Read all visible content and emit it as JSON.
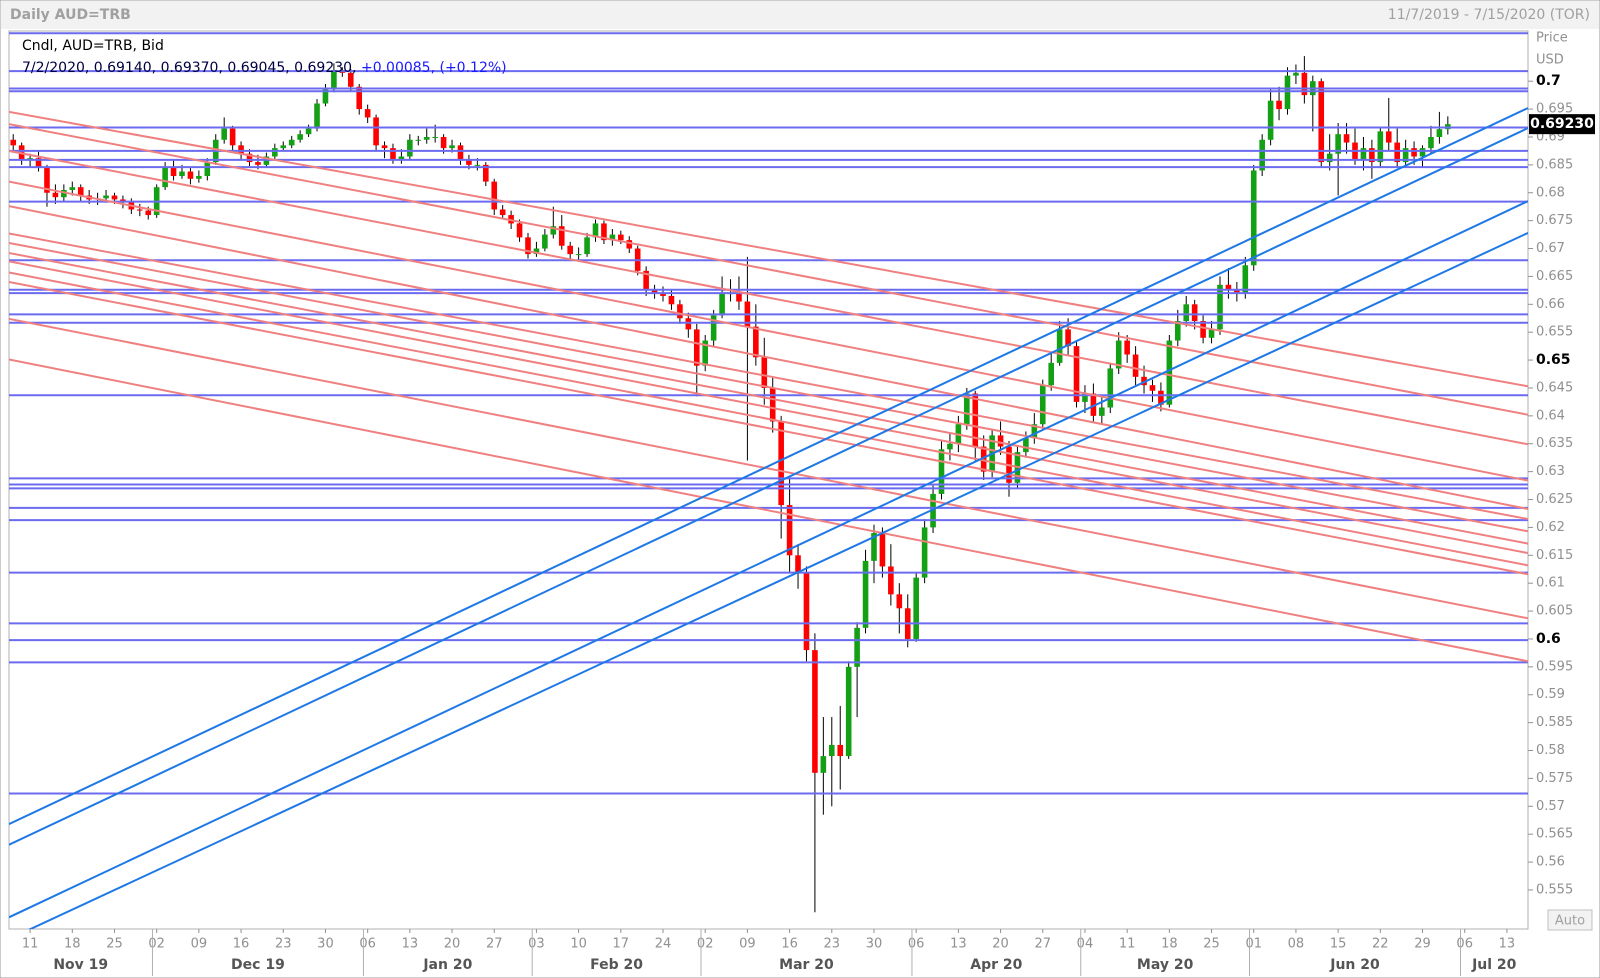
{
  "header": {
    "title": "Daily AUD=TRB",
    "range": "11/7/2019 - 7/15/2020 (TOR)"
  },
  "chart_data": {
    "type": "candlestick",
    "legend_title": "Cndl, AUD=TRB, Bid",
    "legend_values": "7/2/2020, 0.69140, 0.69370, 0.69045, 0.69230,",
    "legend_change": "+0.00085, (+0.12%)",
    "y_axis_title": "Price",
    "y_axis_unit": "USD",
    "scale_mode": "Auto",
    "up_color": "#14a014",
    "down_color": "#ff0000",
    "wick_color": "#000000",
    "ylim": [
      0.548,
      0.709
    ],
    "yticks": [
      0.555,
      0.56,
      0.565,
      0.57,
      0.575,
      0.58,
      0.585,
      0.59,
      0.595,
      0.6,
      0.605,
      0.61,
      0.615,
      0.62,
      0.625,
      0.63,
      0.635,
      0.64,
      0.645,
      0.65,
      0.655,
      0.66,
      0.665,
      0.67,
      0.675,
      0.68,
      0.685,
      0.69,
      0.695,
      0.7
    ],
    "last_price": {
      "value": 0.6923,
      "label": "0.69230"
    },
    "categories": [
      null,
      null,
      "11",
      null,
      null,
      null,
      null,
      "18",
      null,
      null,
      null,
      null,
      "25",
      null,
      null,
      null,
      null,
      "02",
      null,
      null,
      null,
      null,
      "09",
      null,
      null,
      null,
      null,
      "16",
      null,
      null,
      null,
      null,
      "23",
      null,
      null,
      null,
      null,
      "30",
      null,
      null,
      null,
      null,
      "06",
      null,
      null,
      null,
      null,
      "13",
      null,
      null,
      null,
      null,
      "20",
      null,
      null,
      null,
      null,
      "27",
      null,
      null,
      null,
      null,
      "03",
      null,
      null,
      null,
      null,
      "10",
      null,
      null,
      null,
      null,
      "17",
      null,
      null,
      null,
      null,
      "24",
      null,
      null,
      null,
      null,
      "02",
      null,
      null,
      null,
      null,
      "09",
      null,
      null,
      null,
      null,
      "16",
      null,
      null,
      null,
      null,
      "23",
      null,
      null,
      null,
      null,
      "30",
      null,
      null,
      null,
      null,
      "06",
      null,
      null,
      null,
      null,
      "13",
      null,
      null,
      null,
      null,
      "20",
      null,
      null,
      null,
      null,
      "27",
      null,
      null,
      null,
      null,
      "04",
      null,
      null,
      null,
      null,
      "11",
      null,
      null,
      null,
      null,
      "18",
      null,
      null,
      null,
      null,
      "25",
      null,
      null,
      null,
      null,
      "01",
      null,
      null,
      null,
      null,
      "08",
      null,
      null,
      null,
      null,
      "15",
      null,
      null,
      null,
      null,
      "22",
      null,
      null,
      null,
      null,
      "29",
      null,
      null,
      null,
      null,
      "06",
      null,
      null,
      null,
      null,
      "13",
      null,
      null
    ],
    "x_groups": [
      "Nov 19",
      "Dec 19",
      "Jan 20",
      "Feb 20",
      "Mar 20",
      "Apr 20",
      "May 20",
      "Jun 20",
      "Jul 20"
    ],
    "open": [
      0.6895,
      0.6885,
      0.686,
      0.6862,
      0.6845,
      0.68,
      0.6792,
      0.6805,
      0.681,
      0.6795,
      0.6788,
      0.679,
      0.6795,
      0.6788,
      0.6785,
      0.677,
      0.6768,
      0.676,
      0.681,
      0.6845,
      0.683,
      0.6838,
      0.6825,
      0.683,
      0.6855,
      0.6895,
      0.6915,
      0.6885,
      0.687,
      0.6855,
      0.685,
      0.6865,
      0.688,
      0.6885,
      0.6895,
      0.6905,
      0.6915,
      0.696,
      0.6985,
      0.702,
      0.7015,
      0.699,
      0.695,
      0.6935,
      0.6885,
      0.688,
      0.686,
      0.6865,
      0.6895,
      0.6895,
      0.69,
      0.69,
      0.688,
      0.6885,
      0.686,
      0.685,
      0.685,
      0.682,
      0.677,
      0.676,
      0.6745,
      0.672,
      0.669,
      0.67,
      0.6725,
      0.674,
      0.6705,
      0.669,
      0.669,
      0.672,
      0.6745,
      0.6715,
      0.6725,
      0.6715,
      0.67,
      0.666,
      0.6625,
      0.662,
      0.6615,
      0.66,
      0.6575,
      0.6555,
      0.649,
      0.6535,
      0.658,
      0.662,
      0.662,
      0.6605,
      0.656,
      0.6505,
      0.645,
      0.639,
      0.624,
      0.615,
      0.612,
      0.598,
      0.576,
      0.579,
      0.581,
      0.579,
      0.595,
      0.602,
      0.614,
      0.619,
      0.613,
      0.608,
      0.6055,
      0.6,
      0.611,
      0.62,
      0.626,
      0.634,
      0.635,
      0.6385,
      0.644,
      0.6345,
      0.63,
      0.6365,
      0.6345,
      0.628,
      0.6335,
      0.636,
      0.6385,
      0.6455,
      0.6495,
      0.6555,
      0.6525,
      0.6425,
      0.644,
      0.64,
      0.6415,
      0.6485,
      0.6535,
      0.651,
      0.647,
      0.6455,
      0.6445,
      0.642,
      0.6535,
      0.657,
      0.66,
      0.657,
      0.654,
      0.6555,
      0.6635,
      0.6625,
      0.662,
      0.667,
      0.684,
      0.6895,
      0.6965,
      0.695,
      0.701,
      0.7015,
      0.6975,
      0.7,
      0.6855,
      0.687,
      0.6905,
      0.689,
      0.686,
      0.688,
      0.6855,
      0.691,
      0.689,
      0.6855,
      0.688,
      0.6865,
      0.688,
      0.69,
      0.6914,
      null,
      null,
      null,
      null,
      null,
      null,
      null,
      null,
      null
    ],
    "high": [
      0.6905,
      0.689,
      0.687,
      0.6875,
      0.685,
      0.6815,
      0.6815,
      0.682,
      0.6815,
      0.6805,
      0.68,
      0.6805,
      0.68,
      0.6795,
      0.679,
      0.678,
      0.6775,
      0.6815,
      0.6855,
      0.6858,
      0.685,
      0.6845,
      0.684,
      0.6862,
      0.6905,
      0.6935,
      0.692,
      0.6892,
      0.6878,
      0.6868,
      0.6872,
      0.6888,
      0.6892,
      0.6902,
      0.6912,
      0.6922,
      0.6968,
      0.6995,
      0.7032,
      0.7025,
      0.7022,
      0.6995,
      0.6958,
      0.694,
      0.6892,
      0.6888,
      0.6878,
      0.6905,
      0.6902,
      0.6915,
      0.6922,
      0.6905,
      0.6895,
      0.689,
      0.6868,
      0.6862,
      0.6855,
      0.6825,
      0.6778,
      0.6768,
      0.6752,
      0.6728,
      0.6712,
      0.6735,
      0.6775,
      0.676,
      0.6712,
      0.6702,
      0.6728,
      0.6752,
      0.675,
      0.6735,
      0.6732,
      0.6722,
      0.6705,
      0.6668,
      0.6635,
      0.6632,
      0.6625,
      0.6608,
      0.6585,
      0.6565,
      0.6545,
      0.659,
      0.665,
      0.6645,
      0.665,
      0.6685,
      0.66,
      0.654,
      0.647,
      0.64,
      0.629,
      0.617,
      0.613,
      0.601,
      0.586,
      0.586,
      0.588,
      0.596,
      0.603,
      0.616,
      0.6205,
      0.62,
      0.617,
      0.61,
      0.608,
      0.612,
      0.6215,
      0.6275,
      0.6355,
      0.637,
      0.64,
      0.645,
      0.6445,
      0.6365,
      0.6375,
      0.639,
      0.6355,
      0.6345,
      0.6372,
      0.6405,
      0.6465,
      0.6515,
      0.657,
      0.6575,
      0.6535,
      0.6455,
      0.6458,
      0.6435,
      0.6495,
      0.655,
      0.6545,
      0.6525,
      0.649,
      0.6465,
      0.646,
      0.6545,
      0.659,
      0.6615,
      0.6608,
      0.658,
      0.657,
      0.665,
      0.6665,
      0.664,
      0.6685,
      0.685,
      0.6905,
      0.6985,
      0.699,
      0.7025,
      0.703,
      0.7045,
      0.701,
      0.7005,
      0.6905,
      0.6925,
      0.6925,
      0.6915,
      0.69,
      0.6895,
      0.6918,
      0.697,
      0.6915,
      0.6895,
      0.6892,
      0.6885,
      0.692,
      0.6945,
      0.6937,
      null,
      null,
      null,
      null,
      null,
      null,
      null,
      null,
      null
    ],
    "low": [
      0.6875,
      0.685,
      0.6845,
      0.6838,
      0.6775,
      0.678,
      0.6785,
      0.6795,
      0.6785,
      0.678,
      0.6778,
      0.6782,
      0.678,
      0.6772,
      0.6762,
      0.6758,
      0.6752,
      0.6755,
      0.6805,
      0.6822,
      0.6825,
      0.6815,
      0.6818,
      0.6822,
      0.685,
      0.6888,
      0.6875,
      0.686,
      0.6848,
      0.6842,
      0.6845,
      0.6858,
      0.6875,
      0.688,
      0.689,
      0.69,
      0.691,
      0.6955,
      0.698,
      0.7008,
      0.6982,
      0.694,
      0.6925,
      0.6875,
      0.6862,
      0.6852,
      0.6852,
      0.686,
      0.6885,
      0.6888,
      0.689,
      0.687,
      0.6872,
      0.685,
      0.6842,
      0.684,
      0.6812,
      0.676,
      0.6752,
      0.6735,
      0.6712,
      0.6682,
      0.6685,
      0.6695,
      0.6718,
      0.6698,
      0.668,
      0.6678,
      0.6685,
      0.6712,
      0.6708,
      0.6705,
      0.6708,
      0.6692,
      0.6652,
      0.6615,
      0.661,
      0.6605,
      0.659,
      0.6565,
      0.654,
      0.6435,
      0.648,
      0.6525,
      0.6575,
      0.6605,
      0.659,
      0.632,
      0.649,
      0.642,
      0.637,
      0.618,
      0.612,
      0.609,
      0.596,
      0.551,
      0.5685,
      0.57,
      0.573,
      0.5785,
      0.586,
      0.601,
      0.61,
      0.611,
      0.606,
      0.601,
      0.5985,
      0.5995,
      0.61,
      0.619,
      0.625,
      0.632,
      0.6335,
      0.6375,
      0.632,
      0.6285,
      0.629,
      0.633,
      0.6255,
      0.627,
      0.6325,
      0.635,
      0.6375,
      0.6445,
      0.649,
      0.651,
      0.6415,
      0.6405,
      0.639,
      0.6385,
      0.6405,
      0.6475,
      0.6495,
      0.6455,
      0.644,
      0.6425,
      0.6408,
      0.6415,
      0.6525,
      0.656,
      0.6555,
      0.653,
      0.653,
      0.6545,
      0.661,
      0.6605,
      0.661,
      0.666,
      0.683,
      0.6885,
      0.693,
      0.694,
      0.6995,
      0.696,
      0.691,
      0.6845,
      0.684,
      0.6795,
      0.687,
      0.685,
      0.684,
      0.6825,
      0.6845,
      0.6875,
      0.6845,
      0.6845,
      0.685,
      0.6845,
      0.687,
      0.6888,
      0.69045,
      null,
      null,
      null,
      null,
      null,
      null,
      null,
      null,
      null
    ],
    "close": [
      0.6885,
      0.686,
      0.6862,
      0.6845,
      0.68,
      0.6792,
      0.6805,
      0.681,
      0.6795,
      0.6788,
      0.679,
      0.6795,
      0.6788,
      0.6785,
      0.677,
      0.6768,
      0.676,
      0.681,
      0.6845,
      0.683,
      0.6838,
      0.6825,
      0.683,
      0.6855,
      0.6895,
      0.6915,
      0.6885,
      0.687,
      0.6855,
      0.685,
      0.6865,
      0.688,
      0.6885,
      0.6895,
      0.6905,
      0.6915,
      0.696,
      0.6985,
      0.702,
      0.7015,
      0.699,
      0.695,
      0.6935,
      0.6885,
      0.688,
      0.686,
      0.6865,
      0.6895,
      0.6895,
      0.69,
      0.69,
      0.688,
      0.6885,
      0.686,
      0.685,
      0.685,
      0.682,
      0.677,
      0.676,
      0.6745,
      0.672,
      0.669,
      0.67,
      0.6725,
      0.674,
      0.6705,
      0.669,
      0.669,
      0.672,
      0.6745,
      0.6715,
      0.6725,
      0.6715,
      0.67,
      0.666,
      0.6625,
      0.662,
      0.6615,
      0.66,
      0.6575,
      0.6555,
      0.649,
      0.6535,
      0.658,
      0.662,
      0.662,
      0.6605,
      0.656,
      0.6505,
      0.645,
      0.639,
      0.624,
      0.615,
      0.612,
      0.598,
      0.576,
      0.579,
      0.581,
      0.579,
      0.595,
      0.602,
      0.614,
      0.619,
      0.613,
      0.608,
      0.6055,
      0.6,
      0.611,
      0.62,
      0.626,
      0.634,
      0.635,
      0.6385,
      0.644,
      0.6345,
      0.63,
      0.6365,
      0.6345,
      0.628,
      0.6335,
      0.636,
      0.6385,
      0.6455,
      0.6495,
      0.6555,
      0.6525,
      0.6425,
      0.644,
      0.64,
      0.6415,
      0.6485,
      0.6535,
      0.651,
      0.647,
      0.6455,
      0.6445,
      0.642,
      0.6535,
      0.657,
      0.66,
      0.657,
      0.654,
      0.6555,
      0.6635,
      0.6625,
      0.662,
      0.667,
      0.684,
      0.6895,
      0.6965,
      0.695,
      0.701,
      0.7015,
      0.6975,
      0.7,
      0.6855,
      0.687,
      0.6905,
      0.689,
      0.686,
      0.688,
      0.6855,
      0.691,
      0.689,
      0.6855,
      0.688,
      0.6865,
      0.688,
      0.69,
      0.6914,
      0.6923,
      null,
      null,
      null,
      null,
      null,
      null,
      null,
      null,
      null
    ],
    "hlines": {
      "color": "#6b6bf0",
      "values": [
        0.7086,
        0.7018,
        0.6987,
        0.6982,
        0.6917,
        0.6875,
        0.6859,
        0.6846,
        0.6784,
        0.6679,
        0.6626,
        0.662,
        0.6582,
        0.6567,
        0.6437,
        0.6288,
        0.6277,
        0.627,
        0.6235,
        0.6213,
        0.6119,
        0.6028,
        0.5998,
        0.5958,
        0.5723
      ]
    },
    "trendlines": [
      {
        "color": "#f08080",
        "lines": [
          {
            "start": 0.6945,
            "end": 0.6453
          },
          {
            "start": 0.6923,
            "end": 0.6402
          },
          {
            "start": 0.6875,
            "end": 0.6349
          },
          {
            "start": 0.682,
            "end": 0.6284
          },
          {
            "start": 0.6776,
            "end": 0.6233
          },
          {
            "start": 0.6727,
            "end": 0.6215
          },
          {
            "start": 0.671,
            "end": 0.6193
          },
          {
            "start": 0.6692,
            "end": 0.6171
          },
          {
            "start": 0.6677,
            "end": 0.6154
          },
          {
            "start": 0.6657,
            "end": 0.6132
          },
          {
            "start": 0.664,
            "end": 0.6116
          },
          {
            "start": 0.6574,
            "end": 0.6037
          },
          {
            "start": 0.6501,
            "end": 0.596
          }
        ]
      },
      {
        "color": "#1e78e6",
        "lines": [
          {
            "start": 0.5668,
            "end": 0.6952
          },
          {
            "start": 0.5631,
            "end": 0.6916
          },
          {
            "start": 0.5501,
            "end": 0.6785
          },
          {
            "start": 0.5462,
            "end": 0.6728
          }
        ]
      }
    ]
  }
}
